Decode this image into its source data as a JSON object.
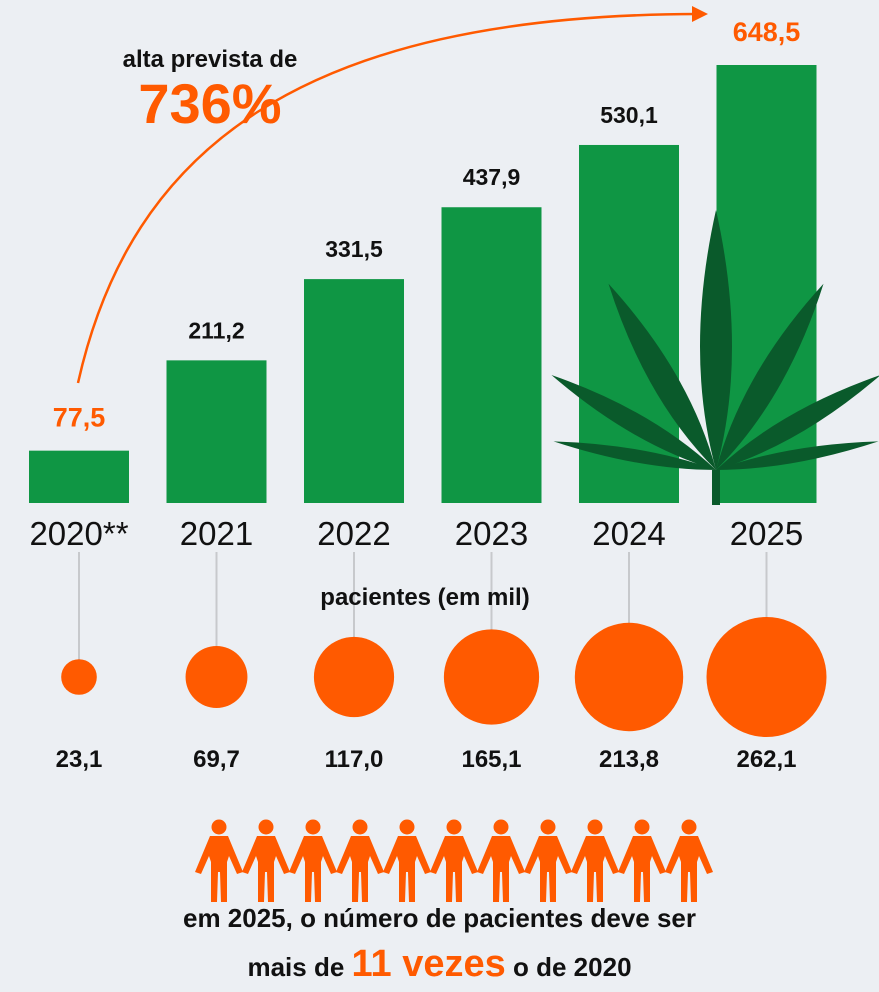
{
  "chart_data": [
    {
      "type": "bar",
      "categories": [
        "2020**",
        "2021",
        "2022",
        "2023",
        "2024",
        "2025"
      ],
      "values": [
        77.5,
        211.2,
        331.5,
        437.9,
        530.1,
        648.5
      ],
      "value_labels": [
        "77,5",
        "211,2",
        "331,5",
        "437,9",
        "530,1",
        "648,5"
      ],
      "highlight_indices": [
        0,
        5
      ],
      "annotation": {
        "text": "alta prevista de",
        "value": "736%"
      }
    },
    {
      "type": "scatter",
      "title": "pacientes (em mil)",
      "categories": [
        "2020**",
        "2021",
        "2022",
        "2023",
        "2024",
        "2025"
      ],
      "values": [
        23.1,
        69.7,
        117.0,
        165.1,
        213.8,
        262.1
      ],
      "value_labels": [
        "23,1",
        "69,7",
        "117,0",
        "165,1",
        "213,8",
        "262,1"
      ]
    }
  ],
  "people_count": 11,
  "footer": {
    "line1": "em 2025, o número de pacientes deve ser",
    "line2_prefix": "mais de",
    "line2_highlight": "11 vezes",
    "line2_suffix": "o de 2020"
  },
  "colors": {
    "bar": "#0f9644",
    "leaf": "#0a5a2b",
    "accent": "#ff5a00",
    "text": "#111111",
    "connector": "#c7c9cc",
    "background": "#eceff3"
  },
  "icons": {
    "decoration": "cannabis-leaf-icon",
    "people": "person-icon"
  }
}
